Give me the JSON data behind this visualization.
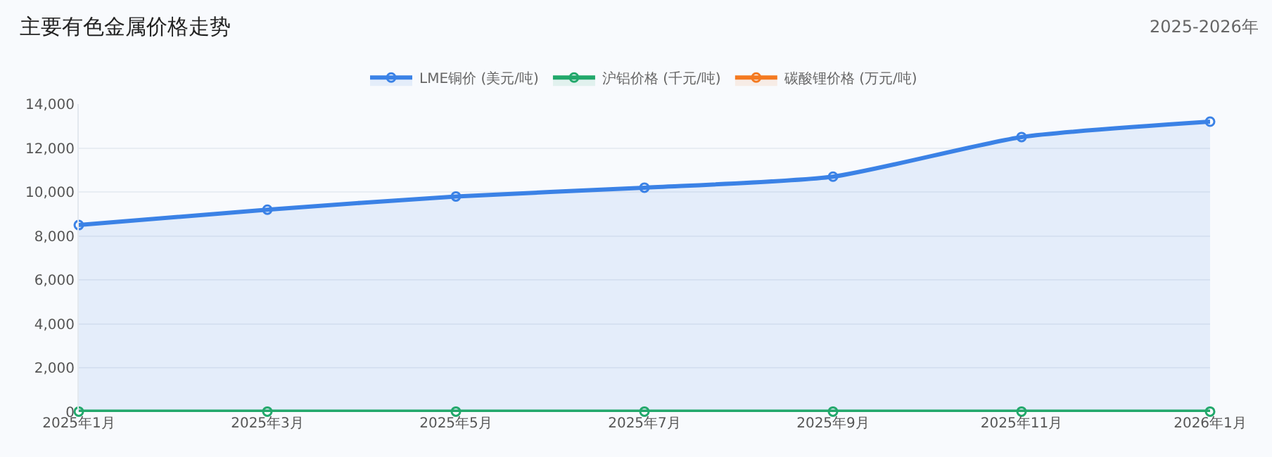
{
  "chart_data": {
    "type": "area",
    "title": "主要有色金属价格走势",
    "subtitle": "2025-2026年",
    "categories": [
      "2025年1月",
      "2025年3月",
      "2025年5月",
      "2025年7月",
      "2025年9月",
      "2025年11月",
      "2026年1月"
    ],
    "series": [
      {
        "name": "LME铜价 (美元/吨)",
        "color": "#3b82e6",
        "values": [
          8500,
          9200,
          9800,
          10200,
          10700,
          12500,
          13200
        ]
      },
      {
        "name": "沪铝价格 (千元/吨)",
        "color": "#22a86b",
        "values": [
          20,
          20,
          20,
          20,
          20,
          20,
          20
        ]
      },
      {
        "name": "碳酸锂价格 (万元/吨)",
        "color": "#f47a20",
        "values": [
          null,
          null,
          null,
          null,
          null,
          null,
          null
        ]
      }
    ],
    "ylim": [
      0,
      14000
    ],
    "yticks": [
      0,
      {
        "value": 2000,
        "label": "2,000"
      },
      {
        "value": 4000,
        "label": "4,000"
      },
      {
        "value": 6000,
        "label": "6,000"
      },
      {
        "value": 8000,
        "label": "8,000"
      },
      {
        "value": 10000,
        "label": "10,000"
      },
      {
        "value": 12000,
        "label": "12,000"
      },
      {
        "value": 14000,
        "label": "14,000"
      }
    ],
    "grid": "y",
    "legend": "top",
    "marker": "circle",
    "line_style": "solid"
  }
}
